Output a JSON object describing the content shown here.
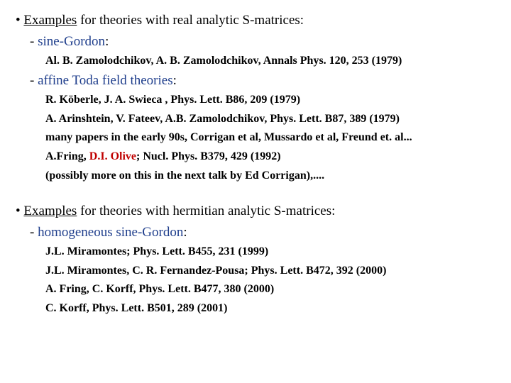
{
  "section1": {
    "heading_prefix": "• ",
    "heading_underlined": "Examples",
    "heading_rest": "  for theories with real analytic S-matrices:",
    "sub1": {
      "dash": "- ",
      "name": "sine-Gordon",
      "colon": ":",
      "refs": [
        "Al. B. Zamolodchikov, A. B. Zamolodchikov, Annals Phys. 120, 253 (1979)"
      ]
    },
    "sub2": {
      "dash": "- ",
      "name": "affine Toda field theories",
      "colon": ":",
      "refs": [
        "R. Köberle, J. A. Swieca , Phys. Lett. B86, 209 (1979)",
        "A. Arinshtein, V. Fateev, A.B. Zamolodchikov, Phys. Lett. B87, 389 (1979)",
        "many papers in the early 90s, Corrigan et al, Mussardo et al, Freund et. al..."
      ],
      "ref_olive_pre": "A.Fring, ",
      "ref_olive_red": "D.I. Olive",
      "ref_olive_post": "; Nucl. Phys. B379, 429 (1992)",
      "ref_last": "(possibly more on this in the next talk by Ed Corrigan),...."
    }
  },
  "section2": {
    "heading_prefix": "• ",
    "heading_underlined": "Examples",
    "heading_rest": " for theories with hermitian analytic S-matrices:",
    "sub1": {
      "dash": "- ",
      "name": "homogeneous sine-Gordon",
      "colon": ":",
      "refs": [
        "J.L. Miramontes; Phys. Lett. B455, 231 (1999)",
        "J.L. Miramontes, C. R. Fernandez-Pousa;  Phys. Lett. B472, 392 (2000)",
        "A. Fring, C. Korff, Phys. Lett. B477, 380 (2000)",
        "C. Korff, Phys. Lett. B501, 289 (2001)"
      ]
    }
  }
}
